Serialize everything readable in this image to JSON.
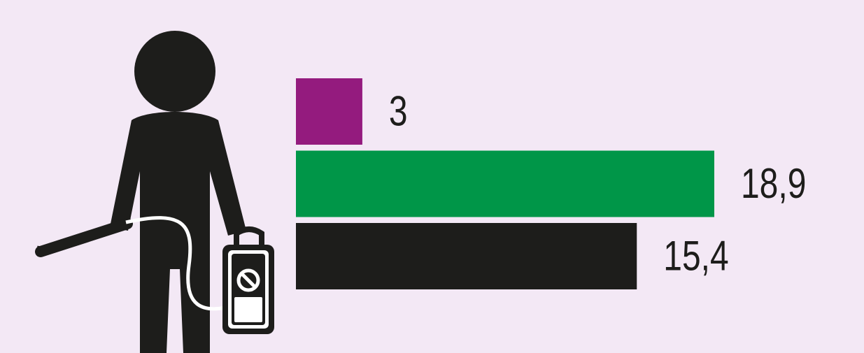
{
  "chart_data": {
    "type": "bar",
    "orientation": "horizontal",
    "values": [
      3,
      18.9,
      15.4
    ],
    "value_labels": [
      "3",
      "18,9",
      "15,4"
    ],
    "colors": [
      "#941b7e",
      "#009648",
      "#1d1d1b"
    ]
  }
}
